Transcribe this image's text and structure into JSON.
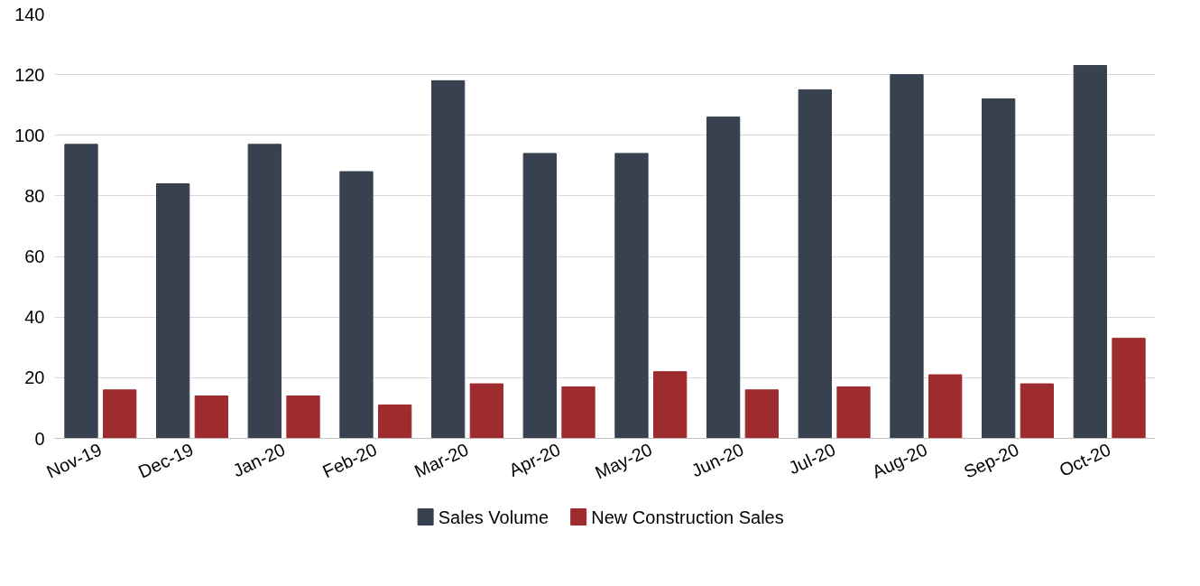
{
  "chart_data": {
    "type": "bar",
    "categories": [
      "Nov-19",
      "Dec-19",
      "Jan-20",
      "Feb-20",
      "Mar-20",
      "Apr-20",
      "May-20",
      "Jun-20",
      "Jul-20",
      "Aug-20",
      "Sep-20",
      "Oct-20"
    ],
    "series": [
      {
        "name": "Sales Volume",
        "color": "#37414f",
        "values": [
          97,
          84,
          97,
          88,
          118,
          94,
          94,
          106,
          115,
          120,
          112,
          123
        ]
      },
      {
        "name": "New Construction Sales",
        "color": "#9e2b2e",
        "values": [
          16,
          14,
          14,
          11,
          18,
          17,
          22,
          16,
          17,
          21,
          18,
          33
        ]
      }
    ],
    "ylim": [
      0,
      140
    ],
    "yticks": [
      0,
      20,
      40,
      60,
      80,
      100,
      120,
      140
    ],
    "grid": "y",
    "legend": "bottom"
  }
}
